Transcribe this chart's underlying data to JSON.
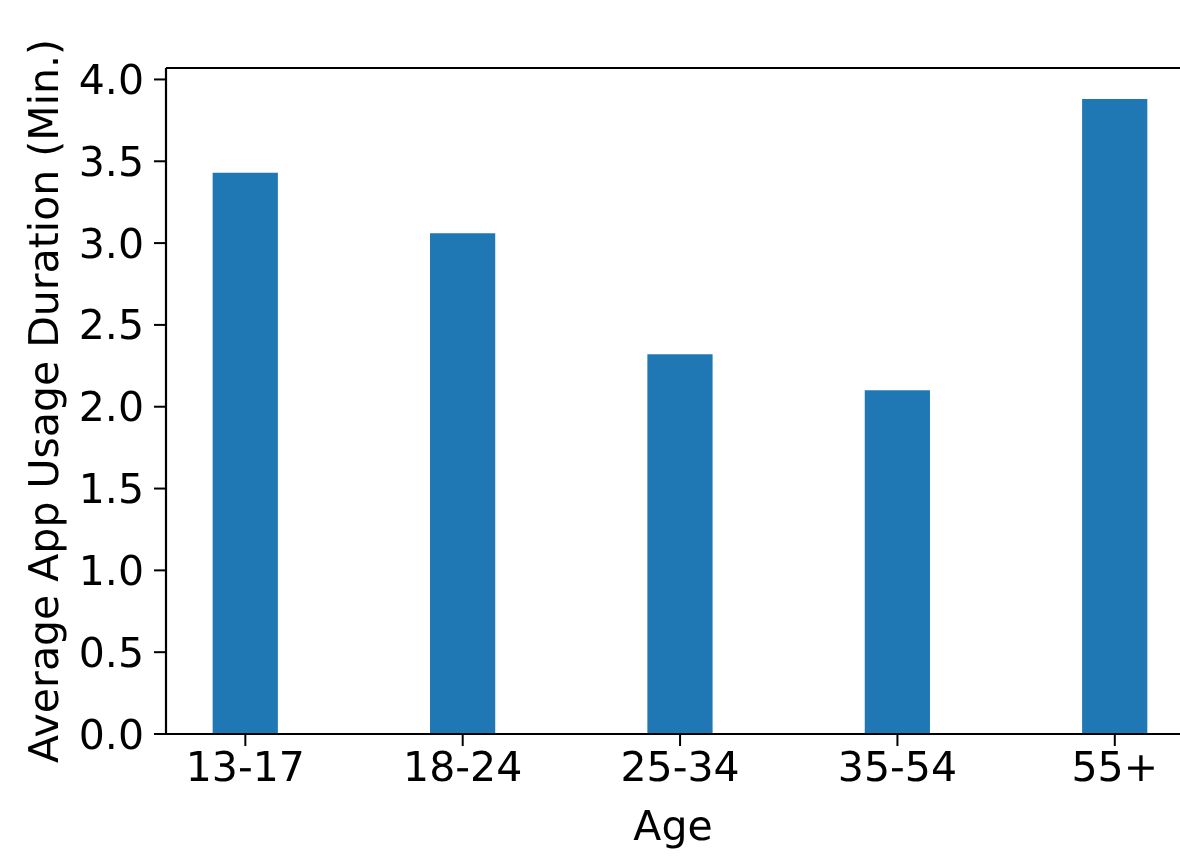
{
  "chart_data": {
    "type": "bar",
    "xlabel": "Age",
    "ylabel": "Average App Usage Duration (Min.)",
    "categories": [
      "13-17",
      "18-24",
      "25-34",
      "35-54",
      "55+"
    ],
    "values": [
      3.43,
      3.06,
      2.32,
      2.1,
      3.88
    ],
    "color": "#1f77b4",
    "ylim": [
      0,
      4.07
    ],
    "yticks": [
      {
        "value": 0,
        "label": "0.0"
      },
      0.5,
      {
        "value": 1,
        "label": "1.0"
      },
      1.5,
      {
        "value": 2,
        "label": "2.0"
      },
      2.5,
      {
        "value": 3,
        "label": "3.0"
      },
      3.5,
      {
        "value": 4,
        "label": "4.0"
      }
    ]
  }
}
